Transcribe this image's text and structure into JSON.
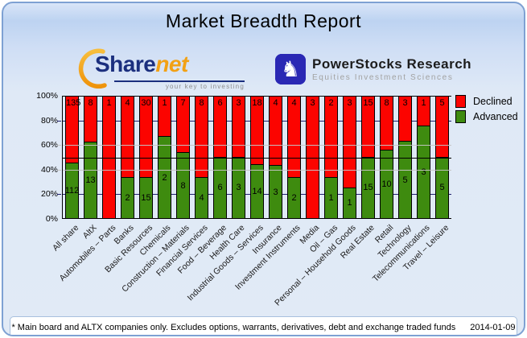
{
  "header": {
    "title": "Market Breadth Report"
  },
  "logos": {
    "sharenet": {
      "name_part1": "Share",
      "name_part2": "net",
      "tagline": "your key to investing"
    },
    "powerstocks": {
      "title": "PowerStocks  Research",
      "subtitle": "Equities Investment Sciences",
      "icon": "knight-chess-piece"
    }
  },
  "legend": {
    "items": [
      {
        "label": "Declined",
        "color": "#fc0400"
      },
      {
        "label": "Advanced",
        "color": "#3e8b0f"
      }
    ]
  },
  "colors": {
    "declined": "#fc0400",
    "advanced": "#3e8b0f",
    "gridline_navy": "#20206e",
    "gridline_gray": "#c5c5c5",
    "reference_line": "#000000"
  },
  "footer": {
    "note": "* Main board and ALTX companies only. Excludes options, warrants, derivatives, debt and exchange traded funds",
    "date": "2014-01-09"
  },
  "chart_data": {
    "type": "bar",
    "stacked": true,
    "normalized_to_percent": true,
    "title": "Market Breadth Report",
    "categories": [
      "All share",
      "AltX",
      "Automobiles – Parts",
      "Banks",
      "Basic Resources",
      "Chemicals",
      "Construction – Materials",
      "Financial Services",
      "Food – Beverage",
      "Health Care",
      "Industrial Goods – Services",
      "Insurance",
      "Investment Instruments",
      "Media",
      "Oil – Gas",
      "Personal – Household Goods",
      "Real Estate",
      "Retail",
      "Technology",
      "Telecommunications",
      "Travel – Leisure"
    ],
    "series": [
      {
        "name": "Declined",
        "color": "#fc0400",
        "values": [
          135,
          8,
          1,
          4,
          30,
          1,
          7,
          8,
          6,
          3,
          18,
          4,
          4,
          3,
          2,
          3,
          15,
          8,
          3,
          1,
          5
        ]
      },
      {
        "name": "Advanced",
        "color": "#3e8b0f",
        "values": [
          112,
          13,
          0,
          2,
          15,
          2,
          8,
          4,
          6,
          3,
          14,
          3,
          2,
          0,
          1,
          1,
          15,
          10,
          5,
          3,
          5
        ]
      }
    ],
    "value_axis": {
      "tick_labels": [
        "0%",
        "20%",
        "40%",
        "60%",
        "80%",
        "100%"
      ],
      "min": 0,
      "max": 100,
      "unit": "% of companies"
    },
    "reference_line_percent": 50,
    "bar_value_labels": "counts shown inside segments",
    "legend_position": "top-right",
    "gridlines": [
      {
        "percent": 80,
        "style": "navy"
      },
      {
        "percent": 60,
        "style": "silver"
      },
      {
        "percent": 40,
        "style": "silver"
      },
      {
        "percent": 20,
        "style": "navy"
      }
    ]
  }
}
